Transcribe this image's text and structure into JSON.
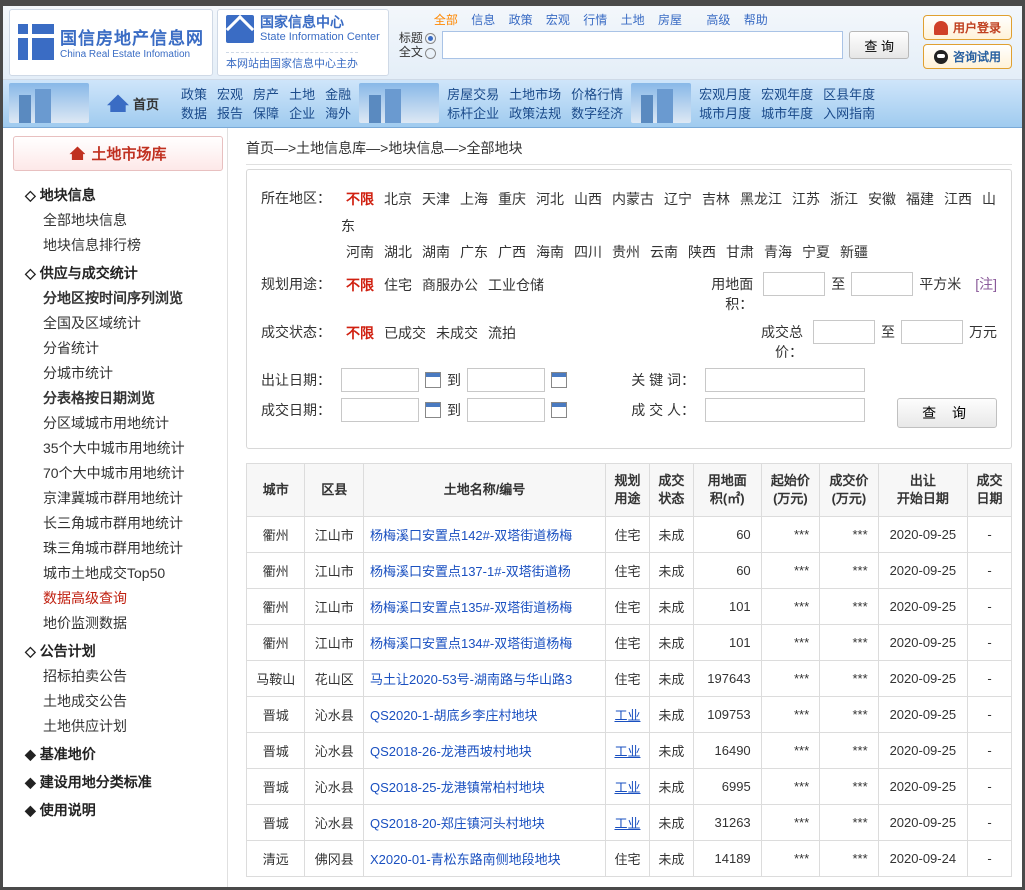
{
  "header": {
    "logo_cn": "国信房地产信息网",
    "logo_en": "China Real Estate Infomation",
    "sic_cn": "国家信息中心",
    "sic_en": "State Information Center",
    "sic_sub": "本网站由国家信息中心主办",
    "cats": {
      "all": "全部",
      "info": "信息",
      "policy": "政策",
      "macro": "宏观",
      "market": "行情",
      "land": "土地",
      "house": "房屋",
      "adv": "高级",
      "help": "帮助"
    },
    "opt_title": "标题",
    "opt_full": "全文",
    "search_btn": "查 询",
    "login": "用户登录",
    "consult": "咨询试用"
  },
  "nav": {
    "home": "首页",
    "g1r1": [
      "政策",
      "宏观",
      "房产",
      "土地",
      "金融"
    ],
    "g1r2": [
      "数据",
      "报告",
      "保障",
      "企业",
      "海外"
    ],
    "g2r1": [
      "房屋交易",
      "土地市场",
      "价格行情"
    ],
    "g2r2": [
      "标杆企业",
      "政策法规",
      "数字经济"
    ],
    "g3r1": [
      "宏观月度",
      "宏观年度",
      "区县年度"
    ],
    "g3r2": [
      "城市月度",
      "城市年度",
      "入网指南"
    ]
  },
  "sidebar": {
    "title": "土地市场库",
    "s1": "地块信息",
    "s1i": [
      "全部地块信息",
      "地块信息排行榜"
    ],
    "s2": "供应与成交统计",
    "s2a": "分地区按时间序列浏览",
    "s2ai": [
      "全国及区域统计",
      "分省统计",
      "分城市统计"
    ],
    "s2b": "分表格按日期浏览",
    "s2bi": [
      "分区域城市用地统计",
      "35个大中城市用地统计",
      "70个大中城市用地统计",
      "京津冀城市群用地统计",
      "长三角城市群用地统计",
      "珠三角城市群用地统计",
      "城市土地成交Top50"
    ],
    "s2c": "数据高级查询",
    "s2d": "地价监测数据",
    "s3": "公告计划",
    "s3i": [
      "招标拍卖公告",
      "土地成交公告",
      "土地供应计划"
    ],
    "s4": "基准地价",
    "s5": "建设用地分类标准",
    "s6": "使用说明"
  },
  "breadcrumb": "首页—>土地信息库—>地块信息—>全部地块",
  "filter": {
    "region_label": "所在地区：",
    "region_opts1": [
      "不限",
      "北京",
      "天津",
      "上海",
      "重庆",
      "河北",
      "山西",
      "内蒙古",
      "辽宁",
      "吉林",
      "黑龙江",
      "江苏",
      "浙江",
      "安徽",
      "福建",
      "江西",
      "山东"
    ],
    "region_opts2": [
      "河南",
      "湖北",
      "湖南",
      "广东",
      "广西",
      "海南",
      "四川",
      "贵州",
      "云南",
      "陕西",
      "甘肃",
      "青海",
      "宁夏",
      "新疆"
    ],
    "use_label": "规划用途：",
    "use_opts": [
      "不限",
      "住宅",
      "商服办公",
      "工业仓储"
    ],
    "area_label": "用地面积：",
    "area_to": "至",
    "area_unit": "平方米",
    "area_note": "[注]",
    "status_label": "成交状态：",
    "status_opts": [
      "不限",
      "已成交",
      "未成交",
      "流拍"
    ],
    "price_label": "成交总价：",
    "price_to": "至",
    "price_unit": "万元",
    "listdate_label": "出让日期：",
    "dealdate_label": "成交日期：",
    "to": "到",
    "kw_label": "关 键 词：",
    "person_label": "成 交 人：",
    "query": "查  询"
  },
  "table": {
    "headers": [
      "城市",
      "区县",
      "土地名称/编号",
      "规划\n用途",
      "成交\n状态",
      "用地面\n积(㎡)",
      "起始价\n(万元)",
      "成交价\n(万元)",
      "出让\n开始日期",
      "成交\n日期"
    ],
    "rows": [
      {
        "city": "衢州",
        "dist": "江山市",
        "name": "杨梅溪口安置点142#-双塔街道杨梅",
        "use": "住宅",
        "status": "未成",
        "area": "60",
        "start": "***",
        "deal": "***",
        "listdate": "2020-09-25",
        "dealdate": "-"
      },
      {
        "city": "衢州",
        "dist": "江山市",
        "name": "杨梅溪口安置点137-1#-双塔街道杨",
        "use": "住宅",
        "status": "未成",
        "area": "60",
        "start": "***",
        "deal": "***",
        "listdate": "2020-09-25",
        "dealdate": "-"
      },
      {
        "city": "衢州",
        "dist": "江山市",
        "name": "杨梅溪口安置点135#-双塔街道杨梅",
        "use": "住宅",
        "status": "未成",
        "area": "101",
        "start": "***",
        "deal": "***",
        "listdate": "2020-09-25",
        "dealdate": "-"
      },
      {
        "city": "衢州",
        "dist": "江山市",
        "name": "杨梅溪口安置点134#-双塔街道杨梅",
        "use": "住宅",
        "status": "未成",
        "area": "101",
        "start": "***",
        "deal": "***",
        "listdate": "2020-09-25",
        "dealdate": "-"
      },
      {
        "city": "马鞍山",
        "dist": "花山区",
        "name": "马土让2020-53号-湖南路与华山路3",
        "use": "住宅",
        "status": "未成",
        "area": "197643",
        "start": "***",
        "deal": "***",
        "listdate": "2020-09-25",
        "dealdate": "-"
      },
      {
        "city": "晋城",
        "dist": "沁水县",
        "name": "QS2020-1-胡底乡李庄村地块",
        "use": "工业",
        "status": "未成",
        "area": "109753",
        "start": "***",
        "deal": "***",
        "listdate": "2020-09-25",
        "dealdate": "-",
        "useLink": true
      },
      {
        "city": "晋城",
        "dist": "沁水县",
        "name": "QS2018-26-龙港西坡村地块",
        "use": "工业",
        "status": "未成",
        "area": "16490",
        "start": "***",
        "deal": "***",
        "listdate": "2020-09-25",
        "dealdate": "-",
        "useLink": true
      },
      {
        "city": "晋城",
        "dist": "沁水县",
        "name": "QS2018-25-龙港镇常柏村地块",
        "use": "工业",
        "status": "未成",
        "area": "6995",
        "start": "***",
        "deal": "***",
        "listdate": "2020-09-25",
        "dealdate": "-",
        "useLink": true
      },
      {
        "city": "晋城",
        "dist": "沁水县",
        "name": "QS2018-20-郑庄镇河头村地块",
        "use": "工业",
        "status": "未成",
        "area": "31263",
        "start": "***",
        "deal": "***",
        "listdate": "2020-09-25",
        "dealdate": "-",
        "useLink": true
      },
      {
        "city": "清远",
        "dist": "佛冈县",
        "name": "X2020-01-青松东路南侧地段地块",
        "use": "住宅",
        "status": "未成",
        "area": "14189",
        "start": "***",
        "deal": "***",
        "listdate": "2020-09-24",
        "dealdate": "-"
      }
    ]
  },
  "colors": {
    "link": "#1a50c0",
    "accent": "#3a6cc4",
    "hot": "#d02010"
  }
}
